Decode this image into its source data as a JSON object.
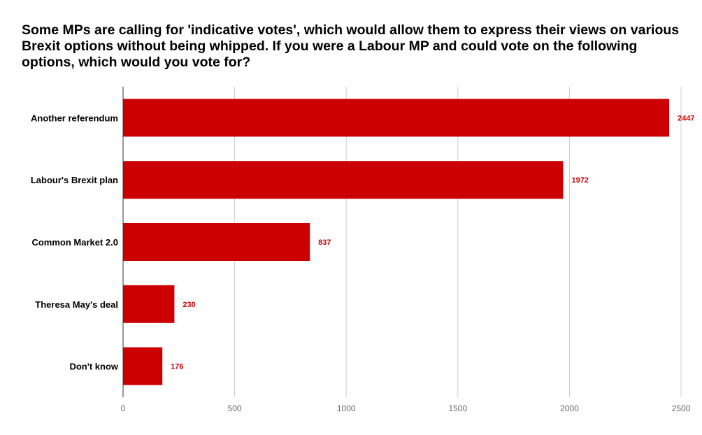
{
  "chart_data": {
    "type": "bar",
    "orientation": "horizontal",
    "title": "Some MPs are calling for 'indicative votes', which would allow them to express their views on various Brexit options without being whipped. If you were a Labour MP and could vote on the following options, which would you vote for?",
    "categories": [
      "Another referendum",
      "Labour's Brexit plan",
      "Common Market 2.0",
      "Theresa May's deal",
      "Don't know"
    ],
    "values": [
      2447,
      1972,
      837,
      230,
      176
    ],
    "data_labels": [
      "2447",
      "1972",
      "837",
      "230",
      "176"
    ],
    "xlim": [
      0,
      2500
    ],
    "x_ticks": [
      0,
      500,
      1000,
      1500,
      2000,
      2500
    ],
    "x_tick_labels": [
      "0",
      "500",
      "1000",
      "1500",
      "2000",
      "2500"
    ],
    "grid": true,
    "legend": "none",
    "bar_color": "#cc0000",
    "label_color": "#cc0000"
  }
}
